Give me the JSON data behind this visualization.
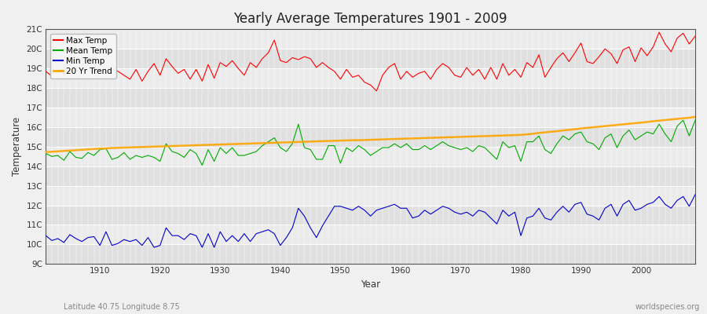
{
  "title": "Yearly Average Temperatures 1901 - 2009",
  "xlabel": "Year",
  "ylabel": "Temperature",
  "subtitle_left": "Latitude 40.75 Longitude 8.75",
  "subtitle_right": "worldspecies.org",
  "ylim": [
    9,
    21
  ],
  "yticks": [
    9,
    10,
    11,
    12,
    13,
    14,
    15,
    16,
    17,
    18,
    19,
    20,
    21
  ],
  "ytick_labels": [
    "9C",
    "10C",
    "11C",
    "12C",
    "13C",
    "14C",
    "15C",
    "16C",
    "17C",
    "18C",
    "19C",
    "20C",
    "21C"
  ],
  "xlim": [
    1901,
    2009
  ],
  "xticks": [
    1910,
    1920,
    1930,
    1940,
    1950,
    1960,
    1970,
    1980,
    1990,
    2000
  ],
  "bg_color": "#f0f0f0",
  "plot_bg_color": "#f0f0f0",
  "grid_color": "#ffffff",
  "max_temp_color": "#ff0000",
  "mean_temp_color": "#00aa00",
  "min_temp_color": "#0000cc",
  "trend_color": "#ffa500",
  "legend_labels": [
    "Max Temp",
    "Mean Temp",
    "Min Temp",
    "20 Yr Trend"
  ],
  "years": [
    1901,
    1902,
    1903,
    1904,
    1905,
    1906,
    1907,
    1908,
    1909,
    1910,
    1911,
    1912,
    1913,
    1914,
    1915,
    1916,
    1917,
    1918,
    1919,
    1920,
    1921,
    1922,
    1923,
    1924,
    1925,
    1926,
    1927,
    1928,
    1929,
    1930,
    1931,
    1932,
    1933,
    1934,
    1935,
    1936,
    1937,
    1938,
    1939,
    1940,
    1941,
    1942,
    1943,
    1944,
    1945,
    1946,
    1947,
    1948,
    1949,
    1950,
    1951,
    1952,
    1953,
    1954,
    1955,
    1956,
    1957,
    1958,
    1959,
    1960,
    1961,
    1962,
    1963,
    1964,
    1965,
    1966,
    1967,
    1968,
    1969,
    1970,
    1971,
    1972,
    1973,
    1974,
    1975,
    1976,
    1977,
    1978,
    1979,
    1980,
    1981,
    1982,
    1983,
    1984,
    1985,
    1986,
    1987,
    1988,
    1989,
    1990,
    1991,
    1992,
    1993,
    1994,
    1995,
    1996,
    1997,
    1998,
    1999,
    2000,
    2001,
    2002,
    2003,
    2004,
    2005,
    2006,
    2007,
    2008,
    2009
  ],
  "max_temp": [
    18.85,
    18.6,
    18.8,
    18.55,
    18.7,
    18.9,
    18.75,
    19.1,
    18.6,
    18.55,
    19.3,
    19.05,
    18.85,
    18.65,
    18.45,
    18.95,
    18.35,
    18.85,
    19.25,
    18.65,
    19.5,
    19.1,
    18.75,
    18.95,
    18.45,
    18.95,
    18.35,
    19.2,
    18.5,
    19.3,
    19.1,
    19.4,
    19.0,
    18.65,
    19.3,
    19.05,
    19.5,
    19.8,
    20.45,
    19.4,
    19.3,
    19.55,
    19.45,
    19.6,
    19.5,
    19.05,
    19.3,
    19.05,
    18.85,
    18.45,
    18.95,
    18.55,
    18.65,
    18.3,
    18.15,
    17.85,
    18.65,
    19.05,
    19.25,
    18.45,
    18.85,
    18.55,
    18.75,
    18.85,
    18.45,
    18.95,
    19.25,
    19.05,
    18.65,
    18.55,
    19.05,
    18.65,
    18.95,
    18.45,
    19.05,
    18.45,
    19.25,
    18.65,
    18.95,
    18.55,
    19.3,
    19.05,
    19.7,
    18.55,
    19.05,
    19.5,
    19.8,
    19.35,
    19.8,
    20.3,
    19.35,
    19.25,
    19.6,
    20.0,
    19.75,
    19.25,
    19.95,
    20.1,
    19.35,
    20.05,
    19.65,
    20.1,
    20.85,
    20.25,
    19.85,
    20.55,
    20.8,
    20.25,
    20.65
  ],
  "mean_temp": [
    14.65,
    14.5,
    14.55,
    14.3,
    14.75,
    14.45,
    14.4,
    14.7,
    14.55,
    14.85,
    14.9,
    14.35,
    14.45,
    14.7,
    14.35,
    14.55,
    14.45,
    14.55,
    14.45,
    14.25,
    15.15,
    14.75,
    14.65,
    14.45,
    14.85,
    14.65,
    14.05,
    14.85,
    14.25,
    14.95,
    14.65,
    14.95,
    14.55,
    14.55,
    14.65,
    14.75,
    15.05,
    15.25,
    15.45,
    14.95,
    14.75,
    15.15,
    16.15,
    14.95,
    14.85,
    14.35,
    14.35,
    15.05,
    15.05,
    14.15,
    14.95,
    14.75,
    15.05,
    14.85,
    14.55,
    14.75,
    14.95,
    14.95,
    15.15,
    14.95,
    15.15,
    14.85,
    14.85,
    15.05,
    14.85,
    15.05,
    15.25,
    15.05,
    14.95,
    14.85,
    14.95,
    14.75,
    15.05,
    14.95,
    14.65,
    14.35,
    15.25,
    14.95,
    15.05,
    14.25,
    15.25,
    15.25,
    15.55,
    14.85,
    14.65,
    15.15,
    15.55,
    15.35,
    15.65,
    15.75,
    15.25,
    15.15,
    14.85,
    15.45,
    15.65,
    14.95,
    15.55,
    15.85,
    15.35,
    15.55,
    15.75,
    15.65,
    16.15,
    15.65,
    15.25,
    16.05,
    16.35,
    15.55,
    16.35
  ],
  "min_temp": [
    10.45,
    10.2,
    10.3,
    10.1,
    10.5,
    10.3,
    10.15,
    10.35,
    10.4,
    9.95,
    10.65,
    9.95,
    10.05,
    10.25,
    10.15,
    10.25,
    9.95,
    10.35,
    9.85,
    9.95,
    10.85,
    10.45,
    10.45,
    10.25,
    10.55,
    10.45,
    9.85,
    10.55,
    9.85,
    10.65,
    10.15,
    10.45,
    10.15,
    10.55,
    10.15,
    10.55,
    10.65,
    10.75,
    10.55,
    9.95,
    10.35,
    10.85,
    11.85,
    11.45,
    10.85,
    10.35,
    10.95,
    11.45,
    11.95,
    11.95,
    11.85,
    11.75,
    11.95,
    11.75,
    11.45,
    11.75,
    11.85,
    11.95,
    12.05,
    11.85,
    11.85,
    11.35,
    11.45,
    11.75,
    11.55,
    11.75,
    11.95,
    11.85,
    11.65,
    11.55,
    11.65,
    11.45,
    11.75,
    11.65,
    11.35,
    11.05,
    11.75,
    11.45,
    11.65,
    10.45,
    11.35,
    11.45,
    11.85,
    11.35,
    11.25,
    11.65,
    11.95,
    11.65,
    12.05,
    12.15,
    11.55,
    11.45,
    11.25,
    11.85,
    12.05,
    11.45,
    12.05,
    12.25,
    11.75,
    11.85,
    12.05,
    12.15,
    12.45,
    12.05,
    11.85,
    12.25,
    12.45,
    11.95,
    12.55
  ],
  "trend": [
    14.72,
    14.74,
    14.76,
    14.78,
    14.8,
    14.82,
    14.84,
    14.86,
    14.88,
    14.9,
    14.91,
    14.93,
    14.94,
    14.95,
    14.96,
    14.97,
    14.98,
    14.99,
    15.0,
    15.01,
    15.02,
    15.03,
    15.04,
    15.05,
    15.06,
    15.07,
    15.08,
    15.09,
    15.1,
    15.11,
    15.12,
    15.13,
    15.14,
    15.15,
    15.16,
    15.17,
    15.18,
    15.19,
    15.2,
    15.21,
    15.22,
    15.23,
    15.24,
    15.25,
    15.26,
    15.27,
    15.28,
    15.29,
    15.3,
    15.31,
    15.32,
    15.33,
    15.33,
    15.34,
    15.35,
    15.36,
    15.37,
    15.38,
    15.39,
    15.4,
    15.41,
    15.42,
    15.43,
    15.44,
    15.45,
    15.46,
    15.47,
    15.48,
    15.49,
    15.5,
    15.51,
    15.52,
    15.53,
    15.54,
    15.55,
    15.56,
    15.57,
    15.58,
    15.59,
    15.6,
    15.63,
    15.66,
    15.7,
    15.73,
    15.76,
    15.79,
    15.83,
    15.86,
    15.89,
    15.93,
    15.96,
    15.99,
    16.02,
    16.05,
    16.08,
    16.11,
    16.14,
    16.17,
    16.2,
    16.23,
    16.26,
    16.3,
    16.33,
    16.36,
    16.39,
    16.42,
    16.45,
    16.48,
    16.52
  ]
}
